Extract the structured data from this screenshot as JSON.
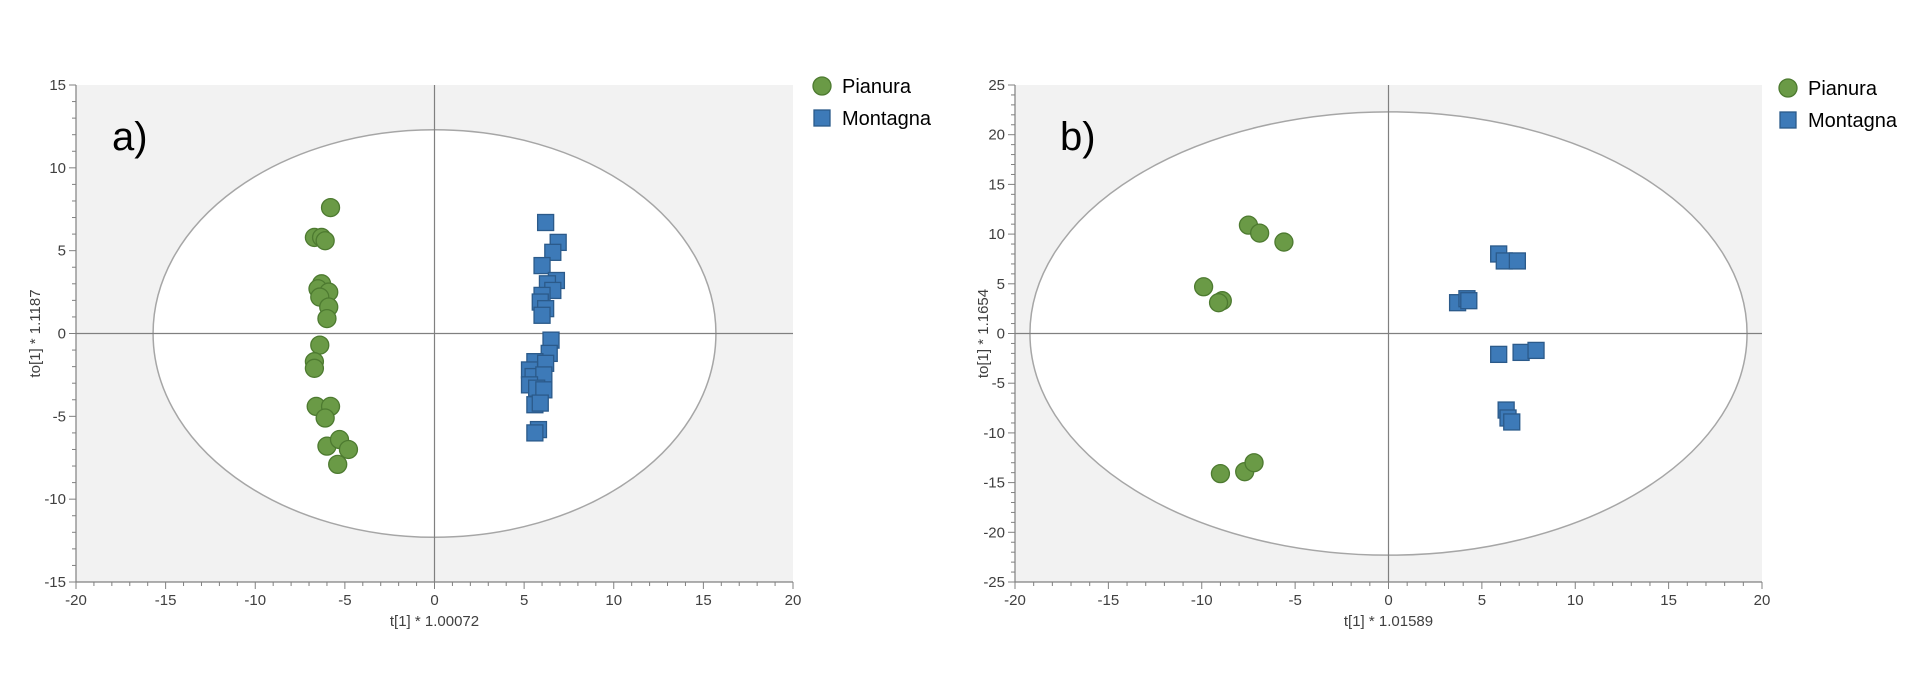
{
  "colors": {
    "pianura_fill": "#6a9a46",
    "pianura_stroke": "#4d7a30",
    "montagna_fill": "#3d7ab8",
    "montagna_stroke": "#2b5a8a",
    "plot_bg": "#f2f2f2",
    "ellipse": "#a6a6a6",
    "axis": "#808080"
  },
  "chart_data": [
    {
      "type": "scatter",
      "panel_label": "a)",
      "xlabel": "t[1] * 1.00072",
      "ylabel": "to[1] * 1.1187",
      "xlim": [
        -20,
        20
      ],
      "ylim": [
        -15,
        15
      ],
      "xticks": [
        -20,
        -15,
        -10,
        -5,
        0,
        5,
        10,
        15,
        20
      ],
      "yticks": [
        -15,
        -10,
        -5,
        0,
        5,
        10,
        15
      ],
      "grid": false,
      "legend_position": "top-right outside",
      "ellipse": {
        "cx": 0,
        "cy": 0,
        "rx": 15.7,
        "ry": 12.3
      },
      "series": [
        {
          "name": "Pianura",
          "marker": "circle",
          "points": [
            [
              -5.8,
              7.6
            ],
            [
              -6.7,
              5.8
            ],
            [
              -6.3,
              5.8
            ],
            [
              -6.1,
              5.6
            ],
            [
              -6.3,
              3.0
            ],
            [
              -6.5,
              2.7
            ],
            [
              -5.9,
              2.5
            ],
            [
              -6.4,
              2.2
            ],
            [
              -5.9,
              1.6
            ],
            [
              -6.0,
              0.9
            ],
            [
              -6.4,
              -0.7
            ],
            [
              -6.7,
              -1.7
            ],
            [
              -6.7,
              -2.1
            ],
            [
              -6.6,
              -4.4
            ],
            [
              -5.8,
              -4.4
            ],
            [
              -6.1,
              -5.1
            ],
            [
              -6.0,
              -6.8
            ],
            [
              -5.3,
              -6.4
            ],
            [
              -4.8,
              -7.0
            ],
            [
              -5.4,
              -7.9
            ]
          ]
        },
        {
          "name": "Montagna",
          "marker": "square",
          "points": [
            [
              6.2,
              6.7
            ],
            [
              6.9,
              5.5
            ],
            [
              6.6,
              4.9
            ],
            [
              6.0,
              4.1
            ],
            [
              6.8,
              3.2
            ],
            [
              6.3,
              3.0
            ],
            [
              6.6,
              2.6
            ],
            [
              6.0,
              2.3
            ],
            [
              5.9,
              1.9
            ],
            [
              6.2,
              1.5
            ],
            [
              6.0,
              1.1
            ],
            [
              6.5,
              -0.4
            ],
            [
              6.4,
              -1.2
            ],
            [
              5.6,
              -1.7
            ],
            [
              6.2,
              -1.8
            ],
            [
              5.3,
              -2.2
            ],
            [
              5.5,
              -2.6
            ],
            [
              6.1,
              -2.5
            ],
            [
              5.3,
              -3.1
            ],
            [
              5.7,
              -3.3
            ],
            [
              6.1,
              -3.4
            ],
            [
              5.6,
              -4.3
            ],
            [
              5.9,
              -4.2
            ],
            [
              5.8,
              -5.8
            ],
            [
              5.6,
              -6.0
            ]
          ]
        }
      ]
    },
    {
      "type": "scatter",
      "panel_label": "b)",
      "xlabel": "t[1] * 1.01589",
      "ylabel": "to[1] * 1.1654",
      "xlim": [
        -20,
        20
      ],
      "ylim": [
        -25,
        25
      ],
      "xticks": [
        -20,
        -15,
        -10,
        -5,
        0,
        5,
        10,
        15,
        20
      ],
      "yticks": [
        -25,
        -20,
        -15,
        -10,
        -5,
        0,
        5,
        10,
        15,
        20,
        25
      ],
      "grid": false,
      "legend_position": "top-right outside",
      "ellipse": {
        "cx": 0,
        "cy": 0,
        "rx": 19.2,
        "ry": 22.3
      },
      "series": [
        {
          "name": "Pianura",
          "marker": "circle",
          "points": [
            [
              -7.5,
              10.9
            ],
            [
              -6.9,
              10.1
            ],
            [
              -5.6,
              9.2
            ],
            [
              -9.9,
              4.7
            ],
            [
              -8.9,
              3.3
            ],
            [
              -9.1,
              3.1
            ],
            [
              -9.0,
              -14.1
            ],
            [
              -7.7,
              -13.9
            ],
            [
              -7.2,
              -13.0
            ]
          ]
        },
        {
          "name": "Montagna",
          "marker": "square",
          "points": [
            [
              5.9,
              8.0
            ],
            [
              6.2,
              7.3
            ],
            [
              6.9,
              7.3
            ],
            [
              3.7,
              3.1
            ],
            [
              4.2,
              3.5
            ],
            [
              4.3,
              3.3
            ],
            [
              5.9,
              -2.1
            ],
            [
              7.1,
              -1.9
            ],
            [
              7.9,
              -1.7
            ],
            [
              6.3,
              -7.7
            ],
            [
              6.4,
              -8.5
            ],
            [
              6.6,
              -8.9
            ]
          ]
        }
      ]
    }
  ]
}
